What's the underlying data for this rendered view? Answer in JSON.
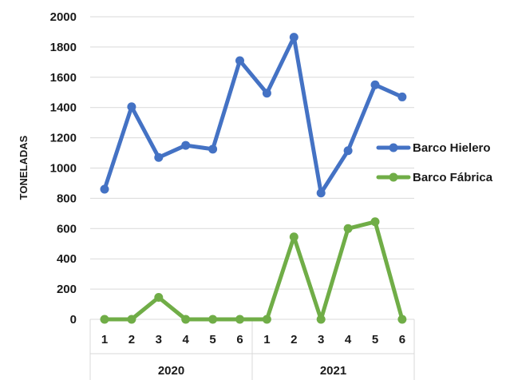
{
  "chart_data": {
    "type": "line",
    "ylabel": "TONELADAS",
    "ylim": [
      0,
      2000
    ],
    "yticks": [
      0,
      200,
      400,
      600,
      800,
      1000,
      1200,
      1400,
      1600,
      1800,
      2000
    ],
    "grid": true,
    "legend_position": "right",
    "categories": [
      "1",
      "2",
      "3",
      "4",
      "5",
      "6",
      "1",
      "2",
      "3",
      "4",
      "5",
      "6"
    ],
    "groups": [
      {
        "label": "2020",
        "count": 6
      },
      {
        "label": "2021",
        "count": 6
      }
    ],
    "series": [
      {
        "name": "Barco Hielero",
        "color": "#4472c4",
        "values": [
          860,
          1405,
          1070,
          1150,
          1125,
          1710,
          1495,
          1865,
          835,
          1115,
          1550,
          1470
        ]
      },
      {
        "name": "Barco Fábrica",
        "color": "#70ad47",
        "values": [
          0,
          0,
          145,
          0,
          0,
          0,
          0,
          545,
          0,
          600,
          645,
          0
        ]
      }
    ]
  }
}
